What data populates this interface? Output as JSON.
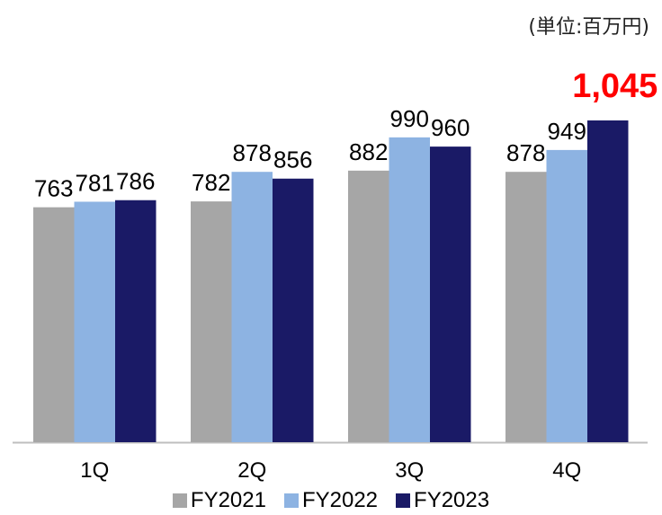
{
  "unit_label": "(単位:百万円)",
  "chart_data": {
    "type": "bar",
    "categories": [
      "1Q",
      "2Q",
      "3Q",
      "4Q"
    ],
    "series": [
      {
        "name": "FY2021",
        "values": [
          763,
          782,
          882,
          878
        ],
        "labels": [
          "763",
          "782",
          "882",
          "878"
        ],
        "color": "#a6a6a6"
      },
      {
        "name": "FY2022",
        "values": [
          781,
          878,
          990,
          949
        ],
        "labels": [
          "781",
          "878",
          "990",
          "949"
        ],
        "color": "#8db3e2"
      },
      {
        "name": "FY2023",
        "values": [
          786,
          856,
          960,
          1045
        ],
        "labels": [
          "786",
          "856",
          "960",
          "1,045"
        ],
        "color": "#1a1a66"
      }
    ],
    "highlight": {
      "series": 2,
      "index": 3,
      "color": "#ff0000"
    },
    "ylim": [
      0,
      1045
    ],
    "grid": false,
    "legend_position": "bottom"
  }
}
